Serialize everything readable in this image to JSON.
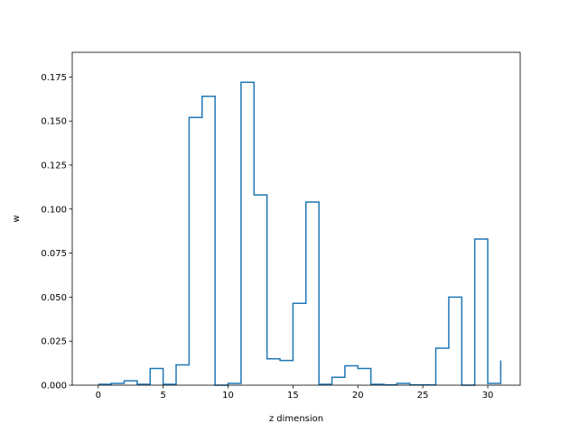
{
  "chart_data": {
    "type": "line",
    "drawstyle": "steps-post",
    "title": "",
    "xlabel": "z dimension",
    "ylabel": "w",
    "xlim": [
      -2,
      32.5
    ],
    "ylim": [
      0,
      0.189
    ],
    "xticks": [
      0,
      5,
      10,
      15,
      20,
      25,
      30
    ],
    "xtick_labels": [
      "0",
      "5",
      "10",
      "15",
      "20",
      "25",
      "30"
    ],
    "yticks": [
      0,
      0.025,
      0.05,
      0.075,
      0.1,
      0.125,
      0.15,
      0.175
    ],
    "ytick_labels": [
      "0.000",
      "0.025",
      "0.050",
      "0.075",
      "0.100",
      "0.125",
      "0.150",
      "0.175"
    ],
    "grid": false,
    "line_color": "#1f77b4",
    "series": [
      {
        "x": [
          0,
          1,
          2,
          3,
          4,
          5,
          6,
          7,
          8,
          9,
          10,
          11,
          12,
          13,
          14,
          15,
          16,
          17,
          18,
          19,
          20,
          21,
          22,
          23,
          24,
          25,
          26,
          27,
          28,
          29,
          30,
          31
        ],
        "values": [
          0.0005,
          0.001,
          0.0025,
          0.0005,
          0.0095,
          0.0005,
          0.0115,
          0.152,
          0.164,
          0.0,
          0.001,
          0.172,
          0.108,
          0.015,
          0.014,
          0.0465,
          0.104,
          0.0005,
          0.0045,
          0.011,
          0.0095,
          0.0005,
          0.0002,
          0.001,
          0.0002,
          0.0002,
          0.021,
          0.05,
          0.0,
          0.083,
          0.001,
          0.014
        ]
      }
    ]
  }
}
